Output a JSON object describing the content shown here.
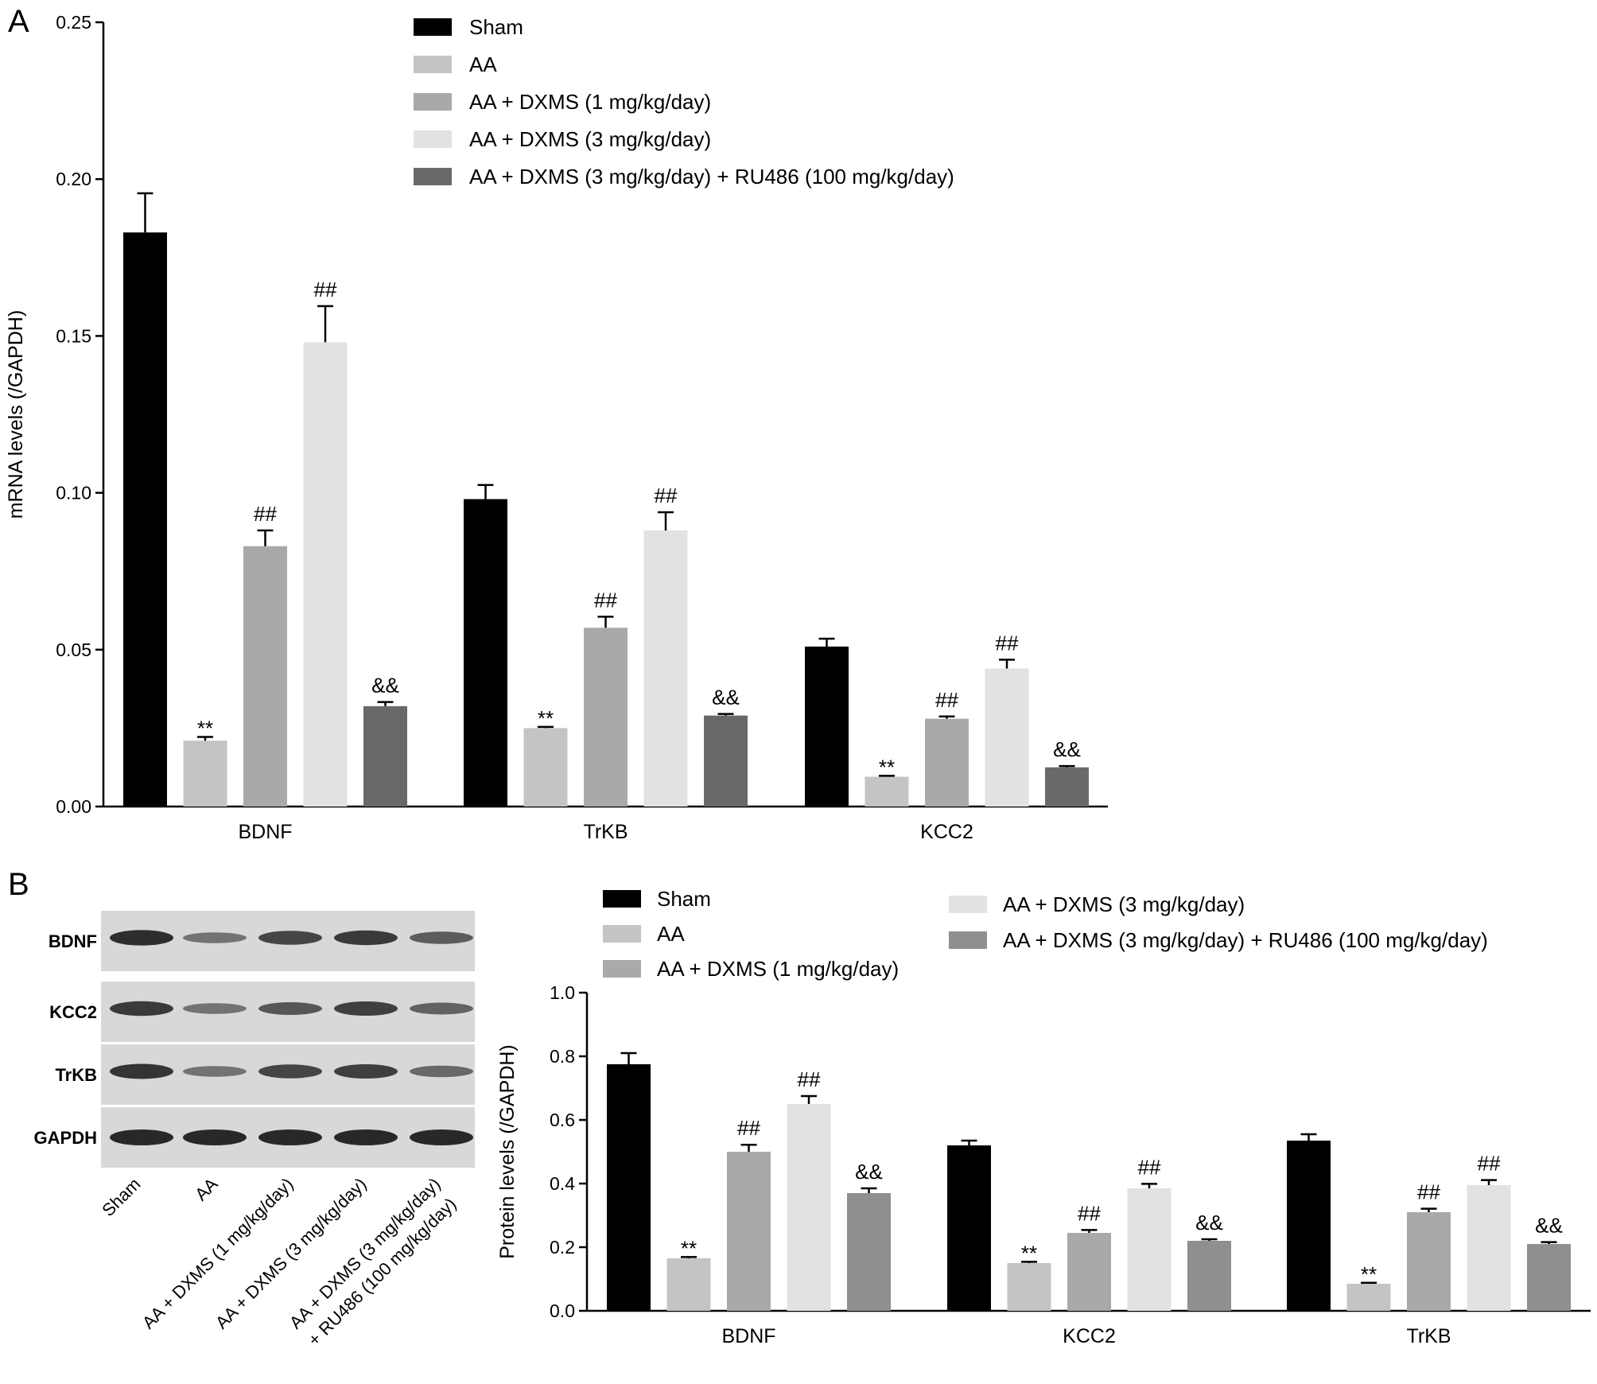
{
  "panels": {
    "a": "A",
    "b": "B"
  },
  "colors": {
    "sham": "#000000",
    "aa": "#c4c4c4",
    "dxms1": "#a9a9a9",
    "dxms3": "#e2e2e2",
    "ru486_a": "#696969",
    "ru486_b": "#8f8f8f"
  },
  "blot": {
    "rows": [
      "BDNF",
      "KCC2",
      "TrKB",
      "GAPDH"
    ],
    "lanes": [
      "Sham",
      "AA",
      "AA + DXMS (1 mg/kg/day)",
      "AA + DXMS (3 mg/kg/day)",
      "AA + DXMS (3 mg/kg/day)",
      "+ RU486 (100 mg/kg/day)"
    ],
    "intensity": [
      [
        0.95,
        0.35,
        0.75,
        0.85,
        0.55
      ],
      [
        0.85,
        0.35,
        0.6,
        0.8,
        0.5
      ],
      [
        0.9,
        0.35,
        0.75,
        0.8,
        0.45
      ],
      [
        1.0,
        1.0,
        1.0,
        1.0,
        1.0
      ]
    ]
  },
  "chart_data": [
    {
      "type": "bar",
      "panel": "A",
      "categories": [
        "BDNF",
        "TrKB",
        "KCC2"
      ],
      "ylabel": "mRNA levels (/GAPDH)",
      "ylim": [
        0,
        0.25
      ],
      "yticks": [
        "0.00",
        "0.05",
        "0.10",
        "0.15",
        "0.20",
        "0.25"
      ],
      "legend_position": "top",
      "series": [
        {
          "name": "Sham",
          "values": [
            0.183,
            0.098,
            0.051
          ],
          "errors": [
            0.0125,
            0.0045,
            0.0025
          ],
          "labels": [
            "",
            "",
            ""
          ]
        },
        {
          "name": "AA",
          "values": [
            0.021,
            0.025,
            0.0095
          ],
          "errors": [
            0.0012,
            0.0004,
            0.0003
          ],
          "labels": [
            "**",
            "**",
            "**"
          ]
        },
        {
          "name": "AA + DXMS (1 mg/kg/day)",
          "values": [
            0.083,
            0.057,
            0.028
          ],
          "errors": [
            0.005,
            0.0035,
            0.0007
          ],
          "labels": [
            "##",
            "##",
            "##"
          ]
        },
        {
          "name": "AA + DXMS (3 mg/kg/day)",
          "values": [
            0.148,
            0.088,
            0.044
          ],
          "errors": [
            0.0115,
            0.0058,
            0.0028
          ],
          "labels": [
            "##",
            "##",
            "##"
          ]
        },
        {
          "name": "AA + DXMS (3 mg/kg/day) + RU486 (100 mg/kg/day)",
          "values": [
            0.032,
            0.029,
            0.0125
          ],
          "errors": [
            0.0013,
            0.0005,
            0.0004
          ],
          "labels": [
            "&&",
            "&&",
            "&&"
          ]
        }
      ]
    },
    {
      "type": "bar",
      "panel": "B",
      "categories": [
        "BDNF",
        "KCC2",
        "TrKB"
      ],
      "ylabel": "Protein levels (/GAPDH)",
      "ylim": [
        0,
        1.0
      ],
      "yticks": [
        "0.0",
        "0.2",
        "0.4",
        "0.6",
        "0.8",
        "1.0"
      ],
      "legend_position": "top",
      "series": [
        {
          "name": "Sham",
          "values": [
            0.775,
            0.52,
            0.535
          ],
          "errors": [
            0.035,
            0.015,
            0.02
          ],
          "labels": [
            "",
            "",
            ""
          ]
        },
        {
          "name": "AA",
          "values": [
            0.165,
            0.15,
            0.085
          ],
          "errors": [
            0.004,
            0.004,
            0.003
          ],
          "labels": [
            "**",
            "**",
            "**"
          ]
        },
        {
          "name": "AA + DXMS (1 mg/kg/day)",
          "values": [
            0.5,
            0.245,
            0.31
          ],
          "errors": [
            0.022,
            0.009,
            0.011
          ],
          "labels": [
            "##",
            "##",
            "##"
          ]
        },
        {
          "name": "AA + DXMS (3 mg/kg/day)",
          "values": [
            0.65,
            0.385,
            0.395
          ],
          "errors": [
            0.025,
            0.014,
            0.016
          ],
          "labels": [
            "##",
            "##",
            "##"
          ]
        },
        {
          "name": "AA + DXMS (3 mg/kg/day) + RU486 (100 mg/kg/day)",
          "values": [
            0.37,
            0.22,
            0.21
          ],
          "errors": [
            0.015,
            0.005,
            0.006
          ],
          "labels": [
            "&&",
            "&&",
            "&&"
          ]
        }
      ]
    }
  ]
}
